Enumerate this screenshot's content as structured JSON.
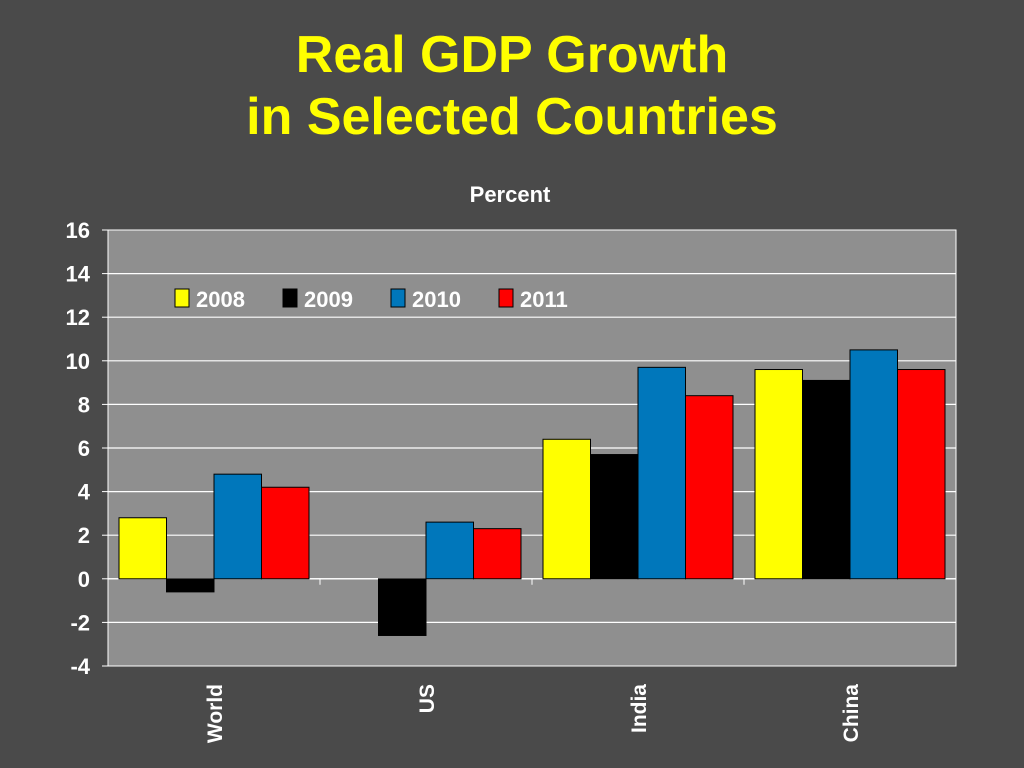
{
  "slide": {
    "title_line1": "Real GDP Growth",
    "title_line2": "in Selected Countries",
    "unit_label": "Percent"
  },
  "colors": {
    "background": "#4a4a4a",
    "plot_area": "#8f8f8f",
    "title": "#ffff00"
  },
  "chart_data": {
    "type": "bar",
    "title": "Real GDP Growth in Selected Countries",
    "ylabel": "Percent",
    "xlabel": "",
    "ylim": [
      -4,
      16
    ],
    "yticks": [
      -4,
      -2,
      0,
      2,
      4,
      6,
      8,
      10,
      12,
      14,
      16
    ],
    "grid": true,
    "legend_position": "top-left",
    "categories": [
      "World",
      "US",
      "India",
      "China"
    ],
    "series": [
      {
        "name": "2008",
        "color": "#ffff00",
        "values": [
          2.8,
          0.0,
          6.4,
          9.6
        ]
      },
      {
        "name": "2009",
        "color": "#000000",
        "values": [
          -0.6,
          -2.6,
          5.7,
          9.1
        ]
      },
      {
        "name": "2010",
        "color": "#0077bb",
        "values": [
          4.8,
          2.6,
          9.7,
          10.5
        ]
      },
      {
        "name": "2011",
        "color": "#ff0000",
        "values": [
          4.2,
          2.3,
          8.4,
          9.6
        ]
      }
    ]
  }
}
